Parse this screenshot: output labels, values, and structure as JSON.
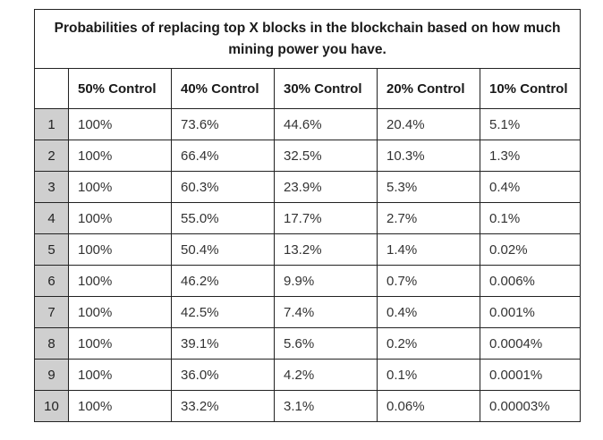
{
  "table": {
    "title": "Probabilities of replacing top X blocks in the blockchain based on how much mining power you have.",
    "columns": [
      "50% Control",
      "40% Control",
      "30% Control",
      "20% Control",
      "10% Control"
    ],
    "rows": [
      {
        "index": "1",
        "values": [
          "100%",
          "73.6%",
          "44.6%",
          "20.4%",
          "5.1%"
        ]
      },
      {
        "index": "2",
        "values": [
          "100%",
          "66.4%",
          "32.5%",
          "10.3%",
          "1.3%"
        ]
      },
      {
        "index": "3",
        "values": [
          "100%",
          "60.3%",
          "23.9%",
          "5.3%",
          "0.4%"
        ]
      },
      {
        "index": "4",
        "values": [
          "100%",
          "55.0%",
          "17.7%",
          "2.7%",
          "0.1%"
        ]
      },
      {
        "index": "5",
        "values": [
          "100%",
          "50.4%",
          "13.2%",
          "1.4%",
          "0.02%"
        ]
      },
      {
        "index": "6",
        "values": [
          "100%",
          "46.2%",
          "9.9%",
          "0.7%",
          "0.006%"
        ]
      },
      {
        "index": "7",
        "values": [
          "100%",
          "42.5%",
          "7.4%",
          "0.4%",
          "0.001%"
        ]
      },
      {
        "index": "8",
        "values": [
          "100%",
          "39.1%",
          "5.6%",
          "0.2%",
          "0.0004%"
        ]
      },
      {
        "index": "9",
        "values": [
          "100%",
          "36.0%",
          "4.2%",
          "0.1%",
          "0.0001%"
        ]
      },
      {
        "index": "10",
        "values": [
          "100%",
          "33.2%",
          "3.1%",
          "0.06%",
          "0.00003%"
        ]
      }
    ]
  },
  "colors": {
    "index_column_background": "#cfcfcf",
    "border": "#222222"
  }
}
